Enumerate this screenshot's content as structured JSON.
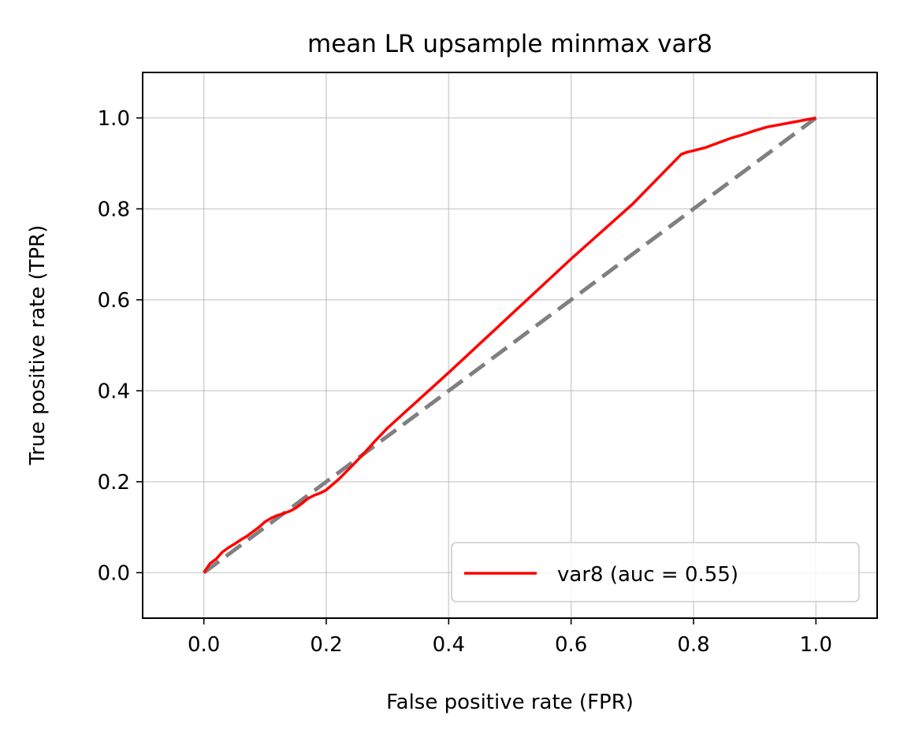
{
  "chart_data": {
    "type": "line",
    "title": "mean LR upsample minmax var8",
    "xlabel": "False positive rate (FPR)",
    "ylabel": "True positive rate (TPR)",
    "xlim": [
      -0.1,
      1.1
    ],
    "ylim": [
      -0.1,
      1.1
    ],
    "xticks": [
      0.0,
      0.2,
      0.4,
      0.6,
      0.8,
      1.0
    ],
    "yticks": [
      0.0,
      0.2,
      0.4,
      0.6,
      0.8,
      1.0
    ],
    "xtick_labels": [
      "0.0",
      "0.2",
      "0.4",
      "0.6",
      "0.8",
      "1.0"
    ],
    "ytick_labels": [
      "0.0",
      "0.2",
      "0.4",
      "0.6",
      "0.8",
      "1.0"
    ],
    "grid": true,
    "legend_position": "lower-right",
    "series": [
      {
        "name": "var8 (auc = 0.55)",
        "color": "#ff0000",
        "style": "solid",
        "x": [
          0.0,
          0.01,
          0.02,
          0.03,
          0.04,
          0.05,
          0.06,
          0.07,
          0.08,
          0.09,
          0.1,
          0.11,
          0.12,
          0.13,
          0.14,
          0.15,
          0.16,
          0.17,
          0.18,
          0.19,
          0.2,
          0.22,
          0.24,
          0.26,
          0.28,
          0.3,
          0.4,
          0.5,
          0.6,
          0.7,
          0.78,
          0.79,
          0.8,
          0.82,
          0.84,
          0.86,
          0.88,
          0.9,
          0.92,
          0.94,
          0.96,
          0.98,
          1.0
        ],
        "y": [
          0.0,
          0.02,
          0.03,
          0.045,
          0.055,
          0.063,
          0.072,
          0.08,
          0.09,
          0.1,
          0.112,
          0.12,
          0.126,
          0.13,
          0.135,
          0.142,
          0.152,
          0.163,
          0.17,
          0.175,
          0.182,
          0.205,
          0.232,
          0.26,
          0.29,
          0.318,
          0.44,
          0.565,
          0.69,
          0.81,
          0.92,
          0.925,
          0.928,
          0.935,
          0.945,
          0.955,
          0.963,
          0.972,
          0.98,
          0.985,
          0.99,
          0.995,
          1.0
        ]
      },
      {
        "name": "",
        "color": "#808080",
        "style": "dashed",
        "x": [
          0.0,
          1.0
        ],
        "y": [
          0.0,
          1.0
        ]
      }
    ]
  }
}
